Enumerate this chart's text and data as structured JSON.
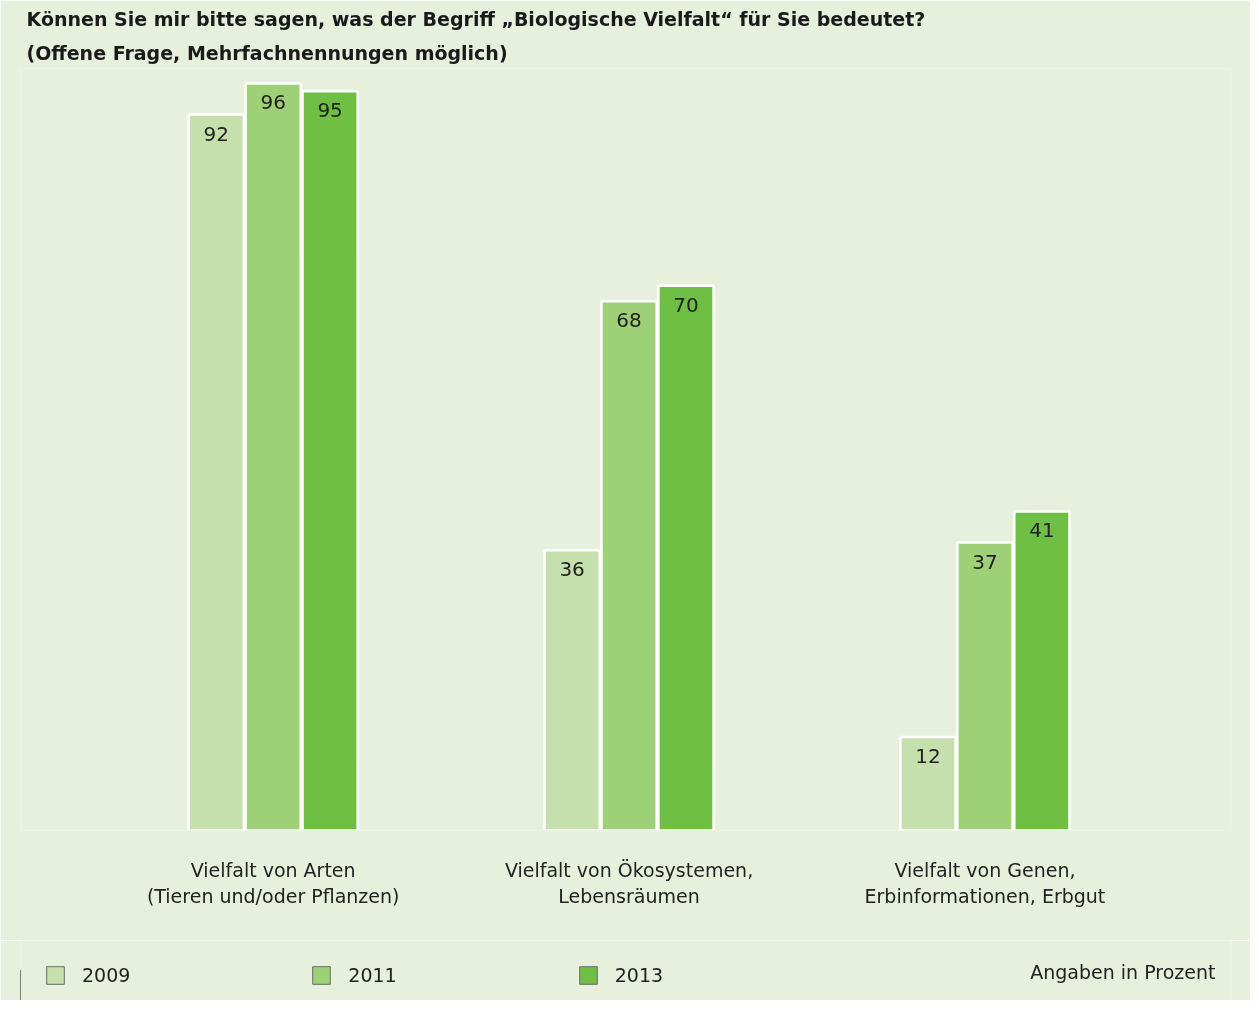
{
  "chart_data": {
    "type": "bar",
    "title": "Können Sie mir bitte sagen, was der Begriff  „Biologische Vielfalt“ für Sie bedeutet?",
    "subtitle": "(Offene Frage, Mehrfachnennungen möglich)",
    "categories": [
      "Vielfalt von Arten\n(Tieren und/oder Pflanzen)",
      "Vielfalt von Ökosystemen,\nLebensräumen",
      "Vielfalt von Genen,\nErbinformationen, Erbgut"
    ],
    "series": [
      {
        "name": "2009",
        "color": "#c5e0ad",
        "values": [
          92,
          36,
          12
        ]
      },
      {
        "name": "2011",
        "color": "#9dd077",
        "values": [
          96,
          68,
          37
        ]
      },
      {
        "name": "2013",
        "color": "#6fbf44",
        "values": [
          95,
          70,
          41
        ]
      }
    ],
    "data_labels": true,
    "grid": false,
    "legend": "bottom",
    "tick_labels": "x",
    "annotations": [
      "Angaben in Prozent"
    ]
  }
}
